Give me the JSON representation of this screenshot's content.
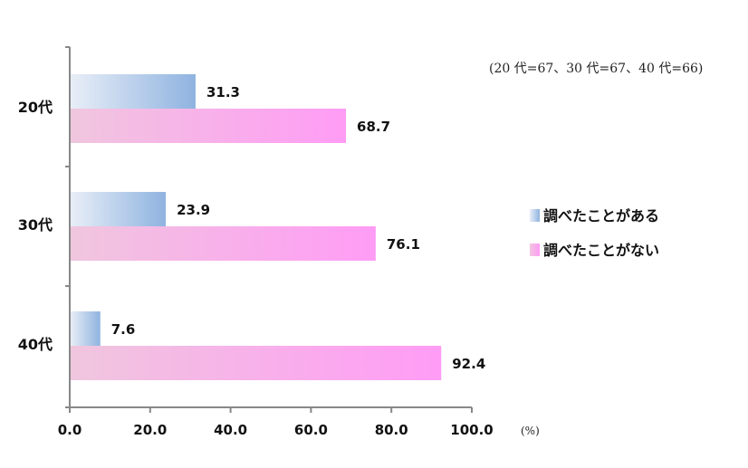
{
  "chart_data": {
    "type": "bar",
    "orientation": "horizontal",
    "categories": [
      "20代",
      "30代",
      "40代"
    ],
    "series": [
      {
        "name": "調べたことがある",
        "values": [
          31.3,
          23.9,
          7.6
        ],
        "color": "#8fb3e0"
      },
      {
        "name": "調べたことがない",
        "values": [
          68.7,
          76.1,
          92.4
        ],
        "color": "#ff9cf5"
      }
    ],
    "value_labels": [
      [
        "31.3",
        "23.9",
        "7.6"
      ],
      [
        "68.7",
        "76.1",
        "92.4"
      ]
    ],
    "xlim": [
      0,
      100
    ],
    "xticks": [
      0,
      20,
      40,
      60,
      80,
      100
    ],
    "xtick_labels": [
      "0.0",
      "20.0",
      "40.0",
      "60.0",
      "80.0",
      "100.0"
    ],
    "unit_label": "(%)",
    "annotation": "(20 代=67、30 代=67、40 代=66)",
    "legend_position": "right",
    "grid": false
  }
}
